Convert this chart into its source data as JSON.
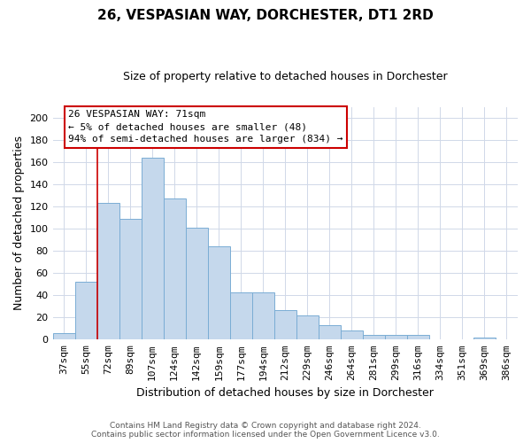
{
  "title": "26, VESPASIAN WAY, DORCHESTER, DT1 2RD",
  "subtitle": "Size of property relative to detached houses in Dorchester",
  "xlabel": "Distribution of detached houses by size in Dorchester",
  "ylabel": "Number of detached properties",
  "categories": [
    "37sqm",
    "55sqm",
    "72sqm",
    "89sqm",
    "107sqm",
    "124sqm",
    "142sqm",
    "159sqm",
    "177sqm",
    "194sqm",
    "212sqm",
    "229sqm",
    "246sqm",
    "264sqm",
    "281sqm",
    "299sqm",
    "316sqm",
    "334sqm",
    "351sqm",
    "369sqm",
    "386sqm"
  ],
  "values": [
    6,
    52,
    123,
    109,
    164,
    127,
    101,
    84,
    43,
    43,
    27,
    22,
    13,
    8,
    4,
    4,
    4,
    0,
    0,
    2,
    0
  ],
  "bar_color": "#c5d8ec",
  "bar_edge_color": "#7aadd4",
  "vline_color": "#cc0000",
  "vline_x": 1.5,
  "ann_line1": "26 VESPASIAN WAY: 71sqm",
  "ann_line2": "← 5% of detached houses are smaller (48)",
  "ann_line3": "94% of semi-detached houses are larger (834) →",
  "ann_box_facecolor": "#ffffff",
  "ann_box_edgecolor": "#cc0000",
  "ylim": [
    0,
    210
  ],
  "yticks": [
    0,
    20,
    40,
    60,
    80,
    100,
    120,
    140,
    160,
    180,
    200
  ],
  "grid_color": "#d0d8e8",
  "bg_color": "#ffffff",
  "footer1": "Contains HM Land Registry data © Crown copyright and database right 2024.",
  "footer2": "Contains public sector information licensed under the Open Government Licence v3.0.",
  "title_fontsize": 11,
  "subtitle_fontsize": 9,
  "ylabel_fontsize": 9,
  "xlabel_fontsize": 9,
  "tick_fontsize": 8,
  "ann_fontsize": 8,
  "footer_fontsize": 6.5
}
